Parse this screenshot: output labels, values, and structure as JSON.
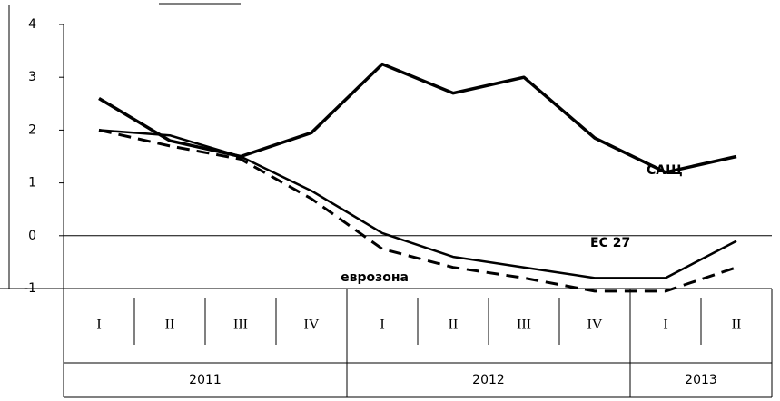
{
  "chart_data": {
    "type": "line",
    "categories": [
      "I",
      "II",
      "III",
      "IV",
      "I",
      "II",
      "III",
      "IV",
      "I",
      "II"
    ],
    "x_groups": [
      {
        "label": "2011",
        "span": 4
      },
      {
        "label": "2012",
        "span": 4
      },
      {
        "label": "2013",
        "span": 2
      }
    ],
    "series": [
      {
        "name": "САЩ",
        "color": "#000000",
        "dash": false,
        "width": 3.5,
        "values": [
          2.6,
          1.8,
          1.5,
          1.95,
          3.25,
          2.7,
          3.0,
          1.85,
          1.2,
          1.5
        ]
      },
      {
        "name": "ЕС 27",
        "color": "#000000",
        "dash": false,
        "width": 2.5,
        "values": [
          2.0,
          1.9,
          1.5,
          0.85,
          0.05,
          -0.4,
          -0.6,
          -0.8,
          -0.8,
          -0.1
        ]
      },
      {
        "name": "еврозона",
        "color": "#000000",
        "dash": true,
        "width": 3,
        "values": [
          2.0,
          1.7,
          1.45,
          0.7,
          -0.25,
          -0.6,
          -0.8,
          -1.05,
          -1.05,
          -0.6
        ]
      }
    ],
    "ylim": [
      -1,
      4
    ],
    "yticks": [
      -1,
      0,
      1,
      2,
      3,
      4
    ]
  }
}
